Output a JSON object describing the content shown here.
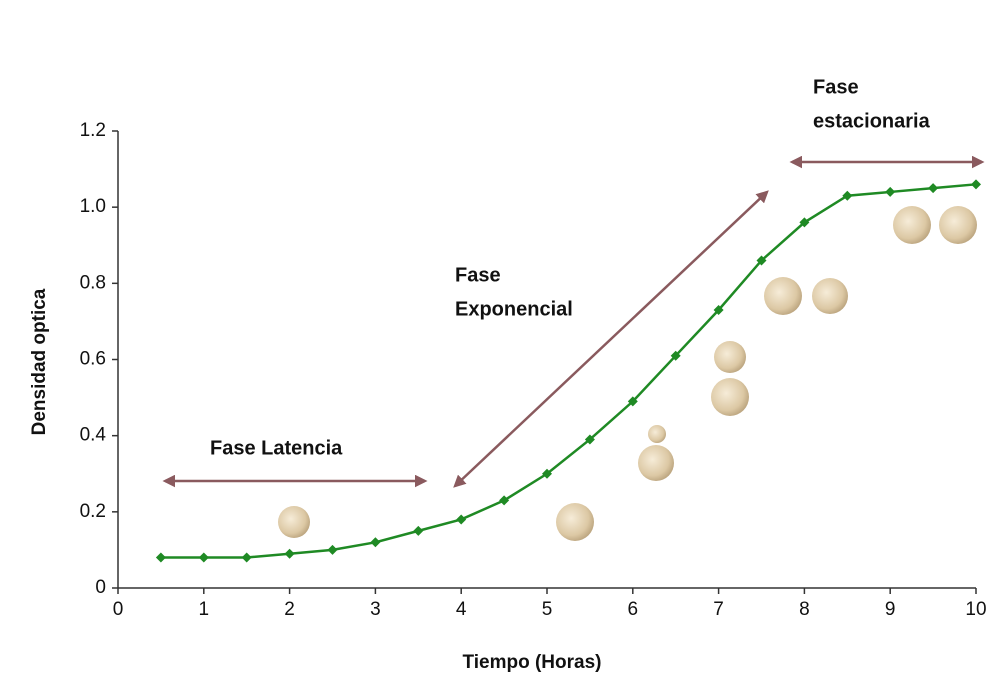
{
  "chart_data": {
    "type": "line",
    "x_label": "Tiempo (Horas)",
    "y_label": "Densidad optica",
    "x": [
      0.5,
      1,
      1.5,
      2,
      2.5,
      3,
      3.5,
      4,
      4.5,
      5,
      5.5,
      6,
      6.5,
      7,
      7.5,
      8,
      8.5,
      9,
      9.5,
      10
    ],
    "values": [
      0.08,
      0.08,
      0.08,
      0.09,
      0.1,
      0.12,
      0.15,
      0.18,
      0.23,
      0.3,
      0.39,
      0.49,
      0.61,
      0.73,
      0.86,
      0.96,
      1.03,
      1.04,
      1.05,
      1.06
    ],
    "color": "#1f8a24",
    "xlim": [
      0,
      10
    ],
    "xticks": [
      0,
      1,
      2,
      3,
      4,
      5,
      6,
      7,
      8,
      9,
      10
    ],
    "ylim": [
      0,
      1.2
    ],
    "yticks": [
      0,
      0.2,
      0.4,
      0.6,
      0.8,
      {
        "value": 1,
        "label": "1.0"
      },
      1.2
    ],
    "grid": false,
    "annotations": [
      [
        "Fase Latencia"
      ],
      [
        "Fase",
        "Exponencial"
      ],
      [
        "Fase",
        "estacionaria"
      ]
    ]
  }
}
